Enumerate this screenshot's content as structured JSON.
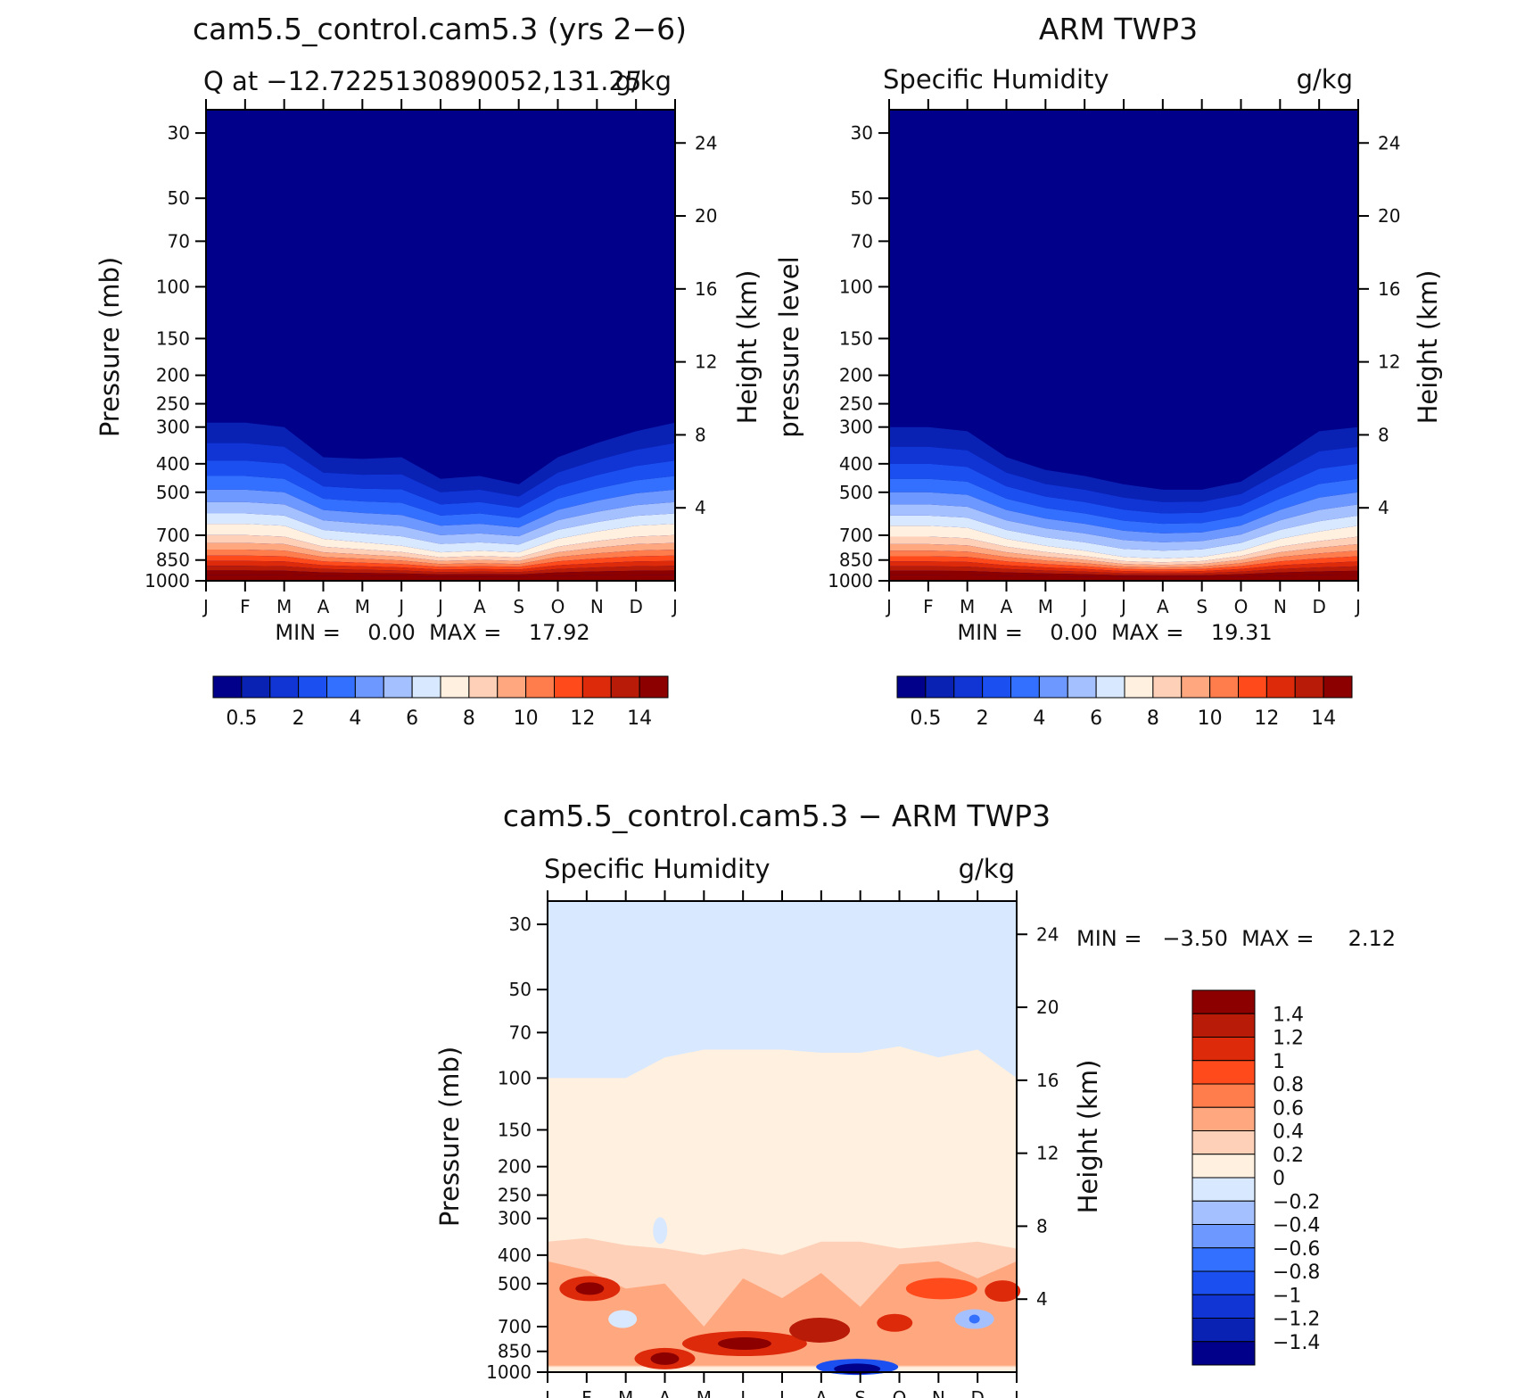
{
  "panels": [
    {
      "title": "cam5.5_control.cam5.3 (yrs 2−6)",
      "left_label": "Q at −12.7225130890052,131.25",
      "right_label": "g/kg",
      "ylabel": "Pressure (mb)",
      "ylabel2": "Height (km)",
      "minmax": "MIN =    0.00  MAX =    17.92",
      "kind": "model"
    },
    {
      "title": "ARM TWP3",
      "left_label": "Specific Humidity",
      "right_label": "g/kg",
      "ylabel": "pressure level",
      "ylabel2": "Height (km)",
      "minmax": "MIN =    0.00  MAX =    19.31",
      "kind": "obs"
    },
    {
      "title": "cam5.5_control.cam5.3 − ARM TWP3",
      "left_label": "Specific Humidity",
      "right_label": "g/kg",
      "ylabel": "Pressure (mb)",
      "ylabel2": "Height (km)",
      "minmax": "MIN =   −3.50  MAX =     2.12",
      "kind": "diff"
    }
  ],
  "chart_data": [
    {
      "type": "heatmap",
      "title": "cam5.5_control.cam5.3 (yrs 2−6)",
      "subtitle": "Q at −12.7225130890052,131.25",
      "units": "g/kg",
      "x_ticks": [
        "J",
        "F",
        "M",
        "A",
        "M",
        "J",
        "J",
        "A",
        "S",
        "O",
        "N",
        "D",
        "J"
      ],
      "y_ticks": [
        "30",
        "50",
        "70",
        "100",
        "150",
        "200",
        "250",
        "300",
        "400",
        "500",
        "700",
        "850",
        "1000"
      ],
      "y2_ticks": [
        "24",
        "20",
        "16",
        "12",
        "8",
        "4"
      ],
      "ylabel": "Pressure (mb)",
      "y2label": "Height (km)",
      "ylim": [
        1000,
        25
      ],
      "min": 0.0,
      "max": 17.92,
      "colorbar_ticks": [
        "0.5",
        "2",
        "4",
        "6",
        "8",
        "10",
        "12",
        "14"
      ],
      "colorbar_colors": [
        "#00008b",
        "#0a22b4",
        "#1035d4",
        "#1b4ff0",
        "#3370ff",
        "#6c98ff",
        "#a4c0ff",
        "#d8e8ff",
        "#fff0e0",
        "#ffd0b8",
        "#ffa880",
        "#ff7c4c",
        "#ff4a1c",
        "#dd2a0a",
        "#b81c08",
        "#8c0000"
      ],
      "surface_profile_pressure_mb": {
        "months": [
          "J",
          "F",
          "M",
          "A",
          "M",
          "J",
          "J",
          "A",
          "S",
          "O",
          "N",
          "D",
          "J"
        ],
        "q_0_5_contour": [
          290,
          290,
          300,
          380,
          385,
          380,
          450,
          440,
          470,
          380,
          340,
          310,
          290
        ],
        "q_6_contour": [
          640,
          640,
          650,
          720,
          740,
          760,
          800,
          790,
          800,
          720,
          680,
          650,
          640
        ]
      }
    },
    {
      "type": "heatmap",
      "title": "ARM TWP3",
      "subtitle": "Specific Humidity",
      "units": "g/kg",
      "x_ticks": [
        "J",
        "F",
        "M",
        "A",
        "M",
        "J",
        "J",
        "A",
        "S",
        "O",
        "N",
        "D",
        "J"
      ],
      "y_ticks": [
        "30",
        "50",
        "70",
        "100",
        "150",
        "200",
        "250",
        "300",
        "400",
        "500",
        "700",
        "850",
        "1000"
      ],
      "y2_ticks": [
        "24",
        "20",
        "16",
        "12",
        "8",
        "4"
      ],
      "ylabel": "pressure level",
      "y2label": "Height (km)",
      "ylim": [
        1000,
        25
      ],
      "min": 0.0,
      "max": 19.31,
      "colorbar_ticks": [
        "0.5",
        "2",
        "4",
        "6",
        "8",
        "10",
        "12",
        "14"
      ],
      "colorbar_colors": [
        "#00008b",
        "#0a22b4",
        "#1035d4",
        "#1b4ff0",
        "#3370ff",
        "#6c98ff",
        "#a4c0ff",
        "#d8e8ff",
        "#fff0e0",
        "#ffd0b8",
        "#ffa880",
        "#ff7c4c",
        "#ff4a1c",
        "#dd2a0a",
        "#b81c08",
        "#8c0000"
      ],
      "surface_profile_pressure_mb": {
        "months": [
          "J",
          "F",
          "M",
          "A",
          "M",
          "J",
          "J",
          "A",
          "S",
          "O",
          "N",
          "D",
          "J"
        ],
        "q_0_5_contour": [
          300,
          300,
          310,
          380,
          420,
          440,
          470,
          490,
          490,
          460,
          380,
          310,
          300
        ],
        "q_6_contour": [
          650,
          650,
          660,
          720,
          760,
          790,
          830,
          840,
          830,
          790,
          720,
          680,
          650
        ]
      }
    },
    {
      "type": "heatmap",
      "title": "cam5.5_control.cam5.3 − ARM TWP3",
      "subtitle": "Specific Humidity",
      "units": "g/kg",
      "x_ticks": [
        "J",
        "F",
        "M",
        "A",
        "M",
        "J",
        "J",
        "A",
        "S",
        "O",
        "N",
        "D",
        "J"
      ],
      "y_ticks": [
        "30",
        "50",
        "70",
        "100",
        "150",
        "200",
        "250",
        "300",
        "400",
        "500",
        "700",
        "850",
        "1000"
      ],
      "y2_ticks": [
        "24",
        "20",
        "16",
        "12",
        "8",
        "4"
      ],
      "ylabel": "Pressure (mb)",
      "y2label": "Height (km)",
      "ylim": [
        1000,
        25
      ],
      "min": -3.5,
      "max": 2.12,
      "colorbar_ticks": [
        "1.4",
        "1.2",
        "1",
        "0.8",
        "0.6",
        "0.4",
        "0.2",
        "0",
        "−0.2",
        "−0.4",
        "−0.6",
        "−0.8",
        "−1",
        "−1.2",
        "−1.4"
      ],
      "colorbar_colors": [
        "#8c0000",
        "#b81c08",
        "#dd2a0a",
        "#ff4a1c",
        "#ff7c4c",
        "#ffa880",
        "#ffd0b8",
        "#fff0e0",
        "#d8e8ff",
        "#a4c0ff",
        "#6c98ff",
        "#3370ff",
        "#1b4ff0",
        "#1035d4",
        "#0a22b4",
        "#00008b"
      ],
      "zero_contour_pressure_mb": [
        100,
        100,
        100,
        85,
        80,
        80,
        80,
        82,
        82,
        78,
        85,
        80,
        100
      ]
    }
  ]
}
